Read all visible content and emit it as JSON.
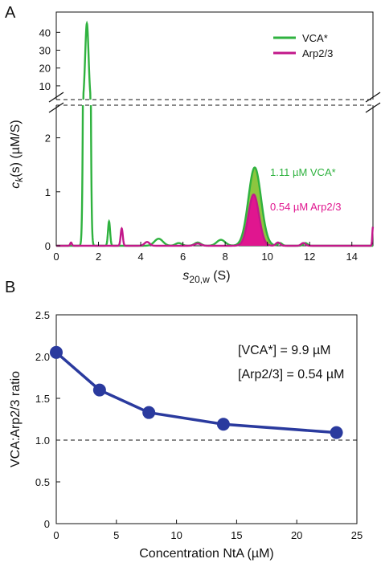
{
  "chart_data": [
    {
      "panel": "A",
      "type": "line",
      "xlabel_main": "s",
      "xlabel_sub": "20,w",
      "xlabel_unit": " (S)",
      "ylabel_main": "c",
      "ylabel_sub": "k",
      "ylabel_unit": "(s) (µM/S)",
      "xlim": [
        0,
        15
      ],
      "xticks": [
        "0",
        "2",
        "4",
        "6",
        "8",
        "10",
        "12",
        "14"
      ],
      "ylim_lower": [
        0,
        2.5
      ],
      "yticks_lower": [
        "0",
        "1",
        "2"
      ],
      "ylim_upper": [
        5,
        46
      ],
      "yticks_upper": [
        "10",
        "20",
        "30",
        "40"
      ],
      "axis_break": true,
      "grid": false,
      "legend_position": "top-right",
      "series": [
        {
          "name": "VCA*",
          "color": "#2fb23f",
          "fill": "#8cc63f",
          "peaks": [
            {
              "center": 1.45,
              "height": 45,
              "width": 0.08
            },
            {
              "center": 2.5,
              "height": 0.45,
              "width": 0.05
            },
            {
              "center": 4.85,
              "height": 0.13,
              "width": 0.2
            },
            {
              "center": 5.8,
              "height": 0.05,
              "width": 0.15
            },
            {
              "center": 6.7,
              "height": 0.06,
              "width": 0.15
            },
            {
              "center": 7.8,
              "height": 0.11,
              "width": 0.2
            },
            {
              "center": 9.4,
              "height": 1.45,
              "width": 0.3
            },
            {
              "center": 10.6,
              "height": 0.05,
              "width": 0.1
            },
            {
              "center": 11.8,
              "height": 0.05,
              "width": 0.1
            }
          ]
        },
        {
          "name": "Arp2/3",
          "color": "#c2188a",
          "fill": "#e0168f",
          "peaks": [
            {
              "center": 0.7,
              "height": 0.06,
              "width": 0.04
            },
            {
              "center": 3.1,
              "height": 0.32,
              "width": 0.05
            },
            {
              "center": 4.3,
              "height": 0.07,
              "width": 0.12
            },
            {
              "center": 6.7,
              "height": 0.04,
              "width": 0.15
            },
            {
              "center": 9.35,
              "height": 0.95,
              "width": 0.25
            },
            {
              "center": 10.5,
              "height": 0.06,
              "width": 0.1
            },
            {
              "center": 11.7,
              "height": 0.05,
              "width": 0.1
            },
            {
              "center": 15.0,
              "height": 0.35,
              "width": 0.03
            }
          ]
        }
      ],
      "annotations": [
        {
          "text": "1.11 µM VCA*",
          "color": "#2fb23f"
        },
        {
          "text": "0.54 µM Arp2/3",
          "color": "#e0168f"
        }
      ]
    },
    {
      "panel": "B",
      "type": "line",
      "xlabel": "Concentration NtA (µM)",
      "ylabel": "VCA:Arp2/3 ratio",
      "xlim": [
        0,
        25
      ],
      "ylim": [
        0,
        2.5
      ],
      "xticks": [
        "0",
        "5",
        "10",
        "15",
        "20",
        "25"
      ],
      "yticks": [
        "0",
        "0.5",
        "1.0",
        "1.5",
        "2.0",
        "2.5"
      ],
      "grid": false,
      "series": [
        {
          "name": "",
          "color": "#2a3a9e",
          "x": [
            0,
            3.6,
            7.7,
            13.9,
            23.3
          ],
          "y": [
            2.05,
            1.6,
            1.33,
            1.19,
            1.09
          ]
        }
      ],
      "reference_line": {
        "y": 1.0,
        "style": "dashed"
      },
      "annotations": [
        "[VCA*] = 9.9 µM",
        "[Arp2/3] = 0.54 µM"
      ]
    }
  ]
}
